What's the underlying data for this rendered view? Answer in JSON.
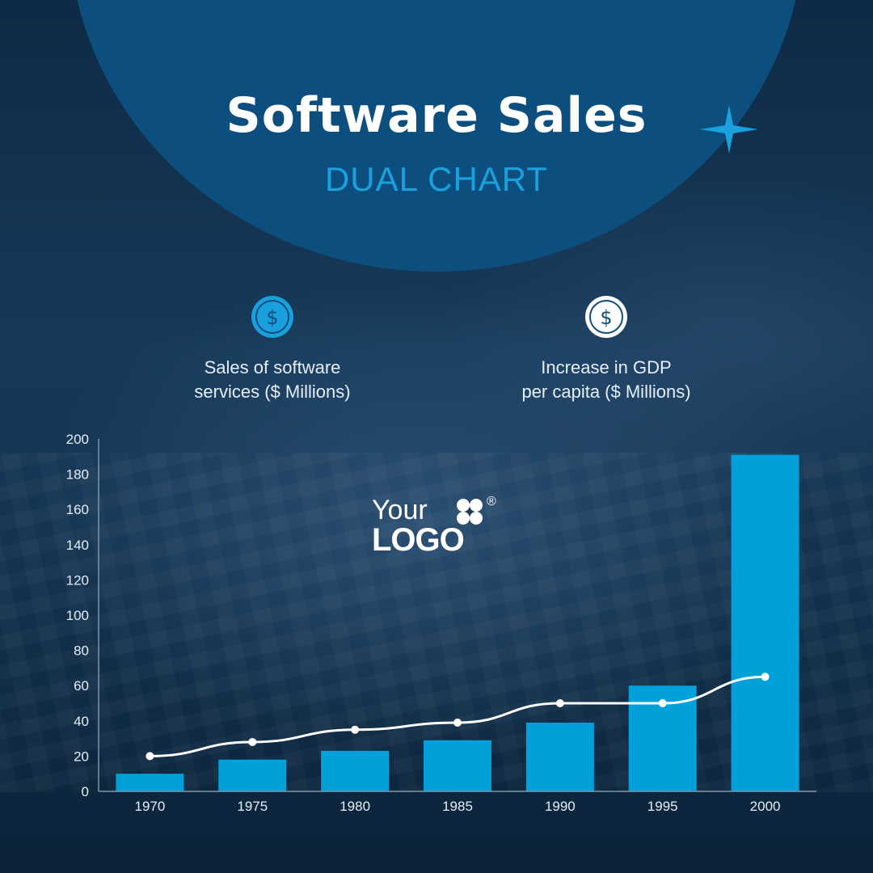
{
  "header": {
    "title": "Software Sales",
    "subtitle": "DUAL CHART"
  },
  "legend": [
    {
      "label_line1": "Sales of software",
      "label_line2": "services ($ Millions)",
      "icon": "dollar-circle-icon",
      "color": "#1aa0dd"
    },
    {
      "label_line1": "Increase in GDP",
      "label_line2": "per capita ($ Millions)",
      "icon": "dollar-circle-icon",
      "color": "#ffffff"
    }
  ],
  "logo": {
    "line1": "Your",
    "line2": "LOGO",
    "reg": "®"
  },
  "colors": {
    "bar": "#00a1db",
    "line": "#ffffff",
    "accent": "#1aa0dd",
    "circle": "#0c4f7e"
  },
  "chart_data": {
    "type": "bar",
    "categories": [
      "1970",
      "1975",
      "1980",
      "1985",
      "1990",
      "1995",
      "2000"
    ],
    "series": [
      {
        "name": "Sales of software services ($ Millions)",
        "type": "bar",
        "values": [
          10,
          18,
          23,
          29,
          39,
          60,
          191
        ]
      },
      {
        "name": "Increase in GDP per capita ($ Millions)",
        "type": "line",
        "values": [
          20,
          28,
          35,
          39,
          50,
          50,
          65
        ]
      }
    ],
    "ylim": [
      0,
      200
    ],
    "yticks": [
      0,
      20,
      40,
      60,
      80,
      100,
      120,
      140,
      160,
      180,
      200
    ],
    "grid": false
  }
}
